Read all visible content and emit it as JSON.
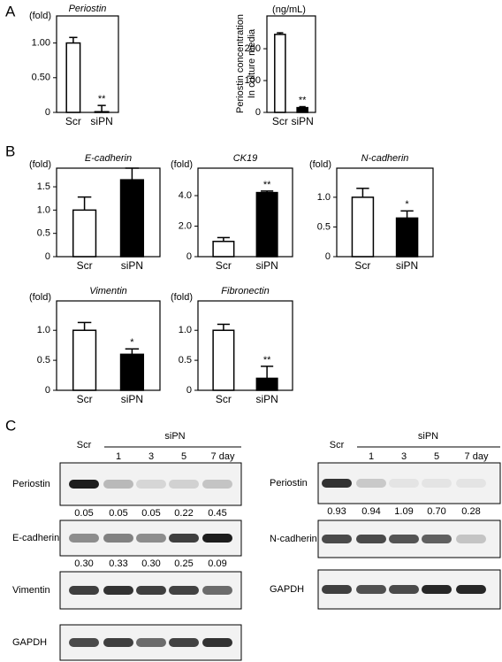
{
  "panel_labels": [
    "A",
    "B",
    "C"
  ],
  "chart_data": [
    {
      "type": "bar",
      "title": "Periostin",
      "y_unit": "(fold)",
      "categories": [
        "Scr",
        "siPN"
      ],
      "values": [
        1.0,
        0.01
      ],
      "errors": [
        0.08,
        0.09
      ],
      "colors": [
        "#ffffff",
        "#000000"
      ],
      "significance": [
        null,
        "**"
      ],
      "ylim": [
        0,
        1.39
      ],
      "yticks": [
        0,
        {
          "value": 0.5,
          "label": "0.50"
        },
        {
          "value": 1,
          "label": "1.00"
        }
      ]
    },
    {
      "type": "bar",
      "y_unit": "(ng/mL)",
      "ylabel": [
        "Periostin concentration",
        "In culture media"
      ],
      "categories": [
        "Scr",
        "siPN"
      ],
      "values": [
        245,
        15
      ],
      "errors": [
        5,
        3
      ],
      "colors": [
        "#ffffff",
        "#000000"
      ],
      "significance": [
        null,
        "**"
      ],
      "ylim": [
        0,
        303
      ],
      "yticks": [
        0,
        100,
        200
      ]
    },
    {
      "type": "bar",
      "title": "E-cadherin",
      "y_unit": "(fold)",
      "categories": [
        "Scr",
        "siPN"
      ],
      "values": [
        1.0,
        1.65
      ],
      "errors": [
        0.28,
        0.25
      ],
      "colors": [
        "#ffffff",
        "#000000"
      ],
      "significance": [
        null,
        null
      ],
      "ylim": [
        0,
        1.9
      ],
      "yticks": [
        0,
        {
          "value": 0.5,
          "label": "0.5"
        },
        {
          "value": 1,
          "label": "1.0"
        },
        {
          "value": 1.5,
          "label": "1.5"
        }
      ]
    },
    {
      "type": "bar",
      "title": "CK19",
      "y_unit": "(fold)",
      "categories": [
        "Scr",
        "siPN"
      ],
      "values": [
        1.0,
        4.2
      ],
      "errors": [
        0.25,
        0.1
      ],
      "colors": [
        "#ffffff",
        "#000000"
      ],
      "significance": [
        null,
        "**"
      ],
      "ylim": [
        0,
        5.8
      ],
      "yticks": [
        0,
        {
          "value": 2,
          "label": "2.0"
        },
        {
          "value": 4,
          "label": "4.0"
        }
      ]
    },
    {
      "type": "bar",
      "title": "N-cadherin",
      "y_unit": "(fold)",
      "categories": [
        "Scr",
        "siPN"
      ],
      "values": [
        1.0,
        0.65
      ],
      "errors": [
        0.15,
        0.12
      ],
      "colors": [
        "#ffffff",
        "#000000"
      ],
      "significance": [
        null,
        "*"
      ],
      "ylim": [
        0,
        1.49
      ],
      "yticks": [
        0,
        0.5,
        {
          "value": 1,
          "label": "1.0"
        }
      ]
    },
    {
      "type": "bar",
      "title": "Vimentin",
      "y_unit": "(fold)",
      "categories": [
        "Scr",
        "siPN"
      ],
      "values": [
        1.0,
        0.6
      ],
      "errors": [
        0.13,
        0.09
      ],
      "colors": [
        "#ffffff",
        "#000000"
      ],
      "significance": [
        null,
        "*"
      ],
      "ylim": [
        0,
        1.49
      ],
      "yticks": [
        0,
        0.5,
        {
          "value": 1,
          "label": "1.0"
        }
      ]
    },
    {
      "type": "bar",
      "title": "Fibronectin",
      "y_unit": "(fold)",
      "categories": [
        "Scr",
        "siPN"
      ],
      "values": [
        1.0,
        0.2
      ],
      "errors": [
        0.1,
        0.2
      ],
      "colors": [
        "#ffffff",
        "#000000"
      ],
      "significance": [
        null,
        "**"
      ],
      "ylim": [
        0,
        1.49
      ],
      "yticks": [
        0,
        0.5,
        {
          "value": 1,
          "label": "1.0"
        }
      ]
    }
  ],
  "blots": [
    {
      "control": "Scr",
      "treatment": "siPN",
      "timepoints": [
        "1",
        "3",
        "5",
        "7 day"
      ],
      "rows": [
        {
          "label": "Periostin",
          "quant_below": [
            "0.05",
            "0.05",
            "0.05",
            "0.22",
            "0.45"
          ]
        },
        {
          "label": "E-cadherin",
          "quant_below": [
            "0.30",
            "0.33",
            "0.30",
            "0.25",
            "0.09"
          ]
        },
        {
          "label": "Vimentin"
        },
        {
          "label": "GAPDH"
        }
      ]
    },
    {
      "control": "Scr",
      "treatment": "siPN",
      "timepoints": [
        "1",
        "3",
        "5",
        "7 day"
      ],
      "rows": [
        {
          "label": "Periostin",
          "quant_below": [
            "0.93",
            "0.94",
            "1.09",
            "0.70",
            "0.28"
          ]
        },
        {
          "label": "N-cadherin"
        },
        {
          "label": "GAPDH"
        }
      ]
    }
  ]
}
